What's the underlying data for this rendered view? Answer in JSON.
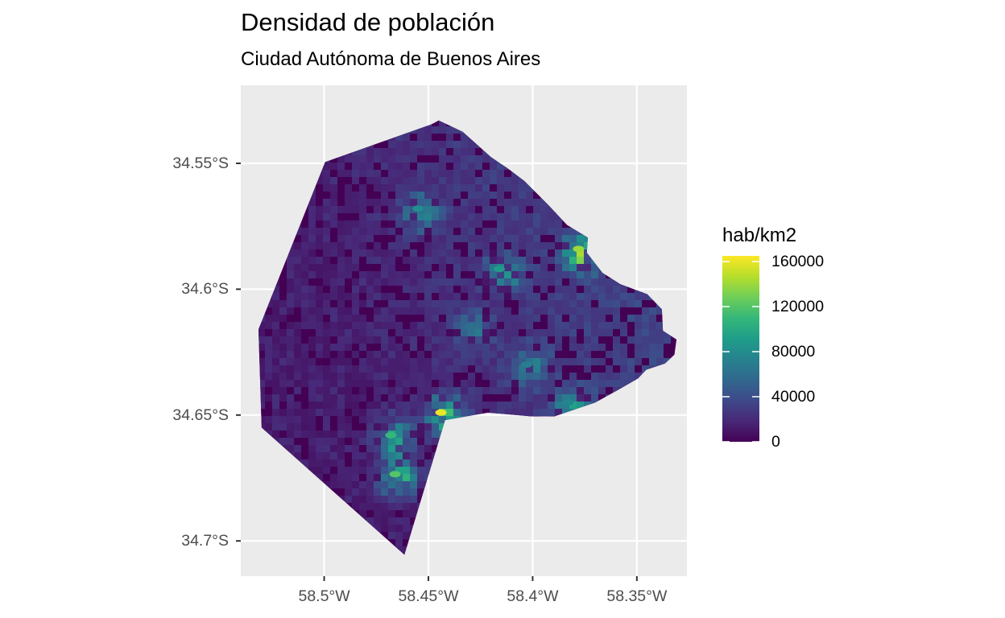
{
  "title": "Densidad de población",
  "subtitle": "Ciudad Autónoma de Buenos Aires",
  "axes": {
    "y_ticks": [
      {
        "value": -34.55,
        "label": "34.55°S"
      },
      {
        "value": -34.6,
        "label": "34.6°S"
      },
      {
        "value": -34.65,
        "label": "34.65°S"
      },
      {
        "value": -34.7,
        "label": "34.7°S"
      }
    ],
    "x_ticks": [
      {
        "value": -58.5,
        "label": "58.5°W"
      },
      {
        "value": -58.45,
        "label": "58.45°W"
      },
      {
        "value": -58.4,
        "label": "58.4°W"
      },
      {
        "value": -58.35,
        "label": "58.35°W"
      }
    ],
    "xlim": [
      -58.54,
      -58.326
    ],
    "ylim": [
      -34.714,
      -34.519
    ]
  },
  "legend": {
    "title": "hab/km2",
    "scale": "viridis",
    "min": 0,
    "max": 165000,
    "breaks": [
      {
        "value": 160000,
        "label": "160000"
      },
      {
        "value": 120000,
        "label": "120000"
      },
      {
        "value": 80000,
        "label": "80000"
      },
      {
        "value": 40000,
        "label": "40000"
      },
      {
        "value": 0,
        "label": "0"
      }
    ]
  },
  "colors": {
    "panel_background": "#ebebeb",
    "grid": "#ffffff",
    "viridis": [
      "#440154",
      "#482878",
      "#3e4989",
      "#31688e",
      "#26828e",
      "#1f9e89",
      "#35b779",
      "#6ece58",
      "#b5de2b",
      "#fde725"
    ]
  },
  "chart_data": {
    "type": "heatmap",
    "title": "Densidad de población",
    "subtitle": "Ciudad Autónoma de Buenos Aires",
    "value_label": "hab/km2",
    "boundary": [
      [
        -58.4995,
        -34.5495
      ],
      [
        -58.4485,
        -34.5345
      ],
      [
        -58.445,
        -34.533
      ],
      [
        -58.4335,
        -34.5375
      ],
      [
        -58.42,
        -34.5475
      ],
      [
        -58.412,
        -34.552
      ],
      [
        -58.404,
        -34.557
      ],
      [
        -58.3925,
        -34.5665
      ],
      [
        -58.3835,
        -34.5745
      ],
      [
        -58.3735,
        -34.5795
      ],
      [
        -58.374,
        -34.5855
      ],
      [
        -58.3665,
        -34.5935
      ],
      [
        -58.358,
        -34.598
      ],
      [
        -58.345,
        -34.602
      ],
      [
        -58.338,
        -34.608
      ],
      [
        -58.3375,
        -34.6165
      ],
      [
        -58.331,
        -34.62
      ],
      [
        -58.332,
        -34.626
      ],
      [
        -58.3365,
        -34.6295
      ],
      [
        -58.3455,
        -34.632
      ],
      [
        -58.3495,
        -34.6355
      ],
      [
        -58.359,
        -34.64
      ],
      [
        -58.37,
        -34.645
      ],
      [
        -58.3895,
        -34.6505
      ],
      [
        -58.401,
        -34.6505
      ],
      [
        -58.4215,
        -34.649
      ],
      [
        -58.442,
        -34.652
      ],
      [
        -58.4615,
        -34.7055
      ],
      [
        -58.53,
        -34.655
      ],
      [
        -58.5315,
        -34.616
      ]
    ],
    "hotspots": [
      {
        "lon": -58.378,
        "lat": -34.584,
        "density": 140000
      },
      {
        "lon": -58.444,
        "lat": -34.649,
        "density": 160000
      },
      {
        "lon": -58.466,
        "lat": -34.6735,
        "density": 120000
      },
      {
        "lon": -58.416,
        "lat": -34.592,
        "density": 90000
      },
      {
        "lon": -58.455,
        "lat": -34.568,
        "density": 80000
      },
      {
        "lon": -58.468,
        "lat": -34.658,
        "density": 110000
      },
      {
        "lon": -58.403,
        "lat": -34.63,
        "density": 70000
      },
      {
        "lon": -58.43,
        "lat": -34.615,
        "density": 60000
      },
      {
        "lon": -58.383,
        "lat": -34.645,
        "density": 75000
      }
    ]
  }
}
